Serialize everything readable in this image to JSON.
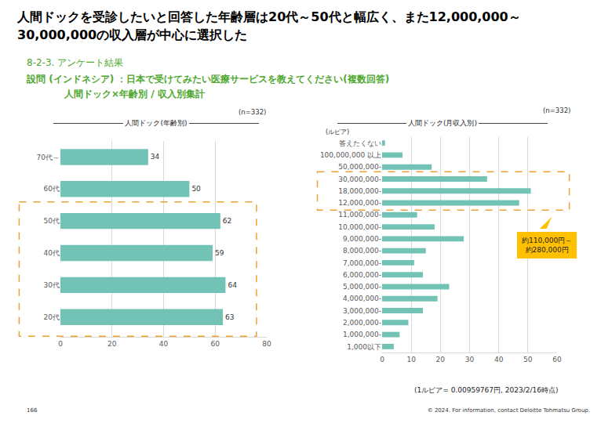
{
  "header": {
    "title": "人間ドックを受診したいと回答した年齢層は20代～50代と幅広く、また12,000,000～\n30,000,000の収入層が中心に選択した",
    "section": "8-2-3. アンケート結果",
    "question": "設問 (インドネシア) ：日本で受けてみたい医療サービスを教えてください(複数回答)",
    "subtitle": "人間ドック×年齢別 / 収入別集計"
  },
  "chart_data": [
    {
      "type": "bar",
      "orientation": "horizontal",
      "title": "人間ドック(年齢別)",
      "subtitle": "(n=332)",
      "categories": [
        "70代～",
        "60代",
        "50代",
        "40代",
        "30代",
        "20代"
      ],
      "values": [
        34,
        50,
        62,
        59,
        64,
        63
      ],
      "color": "#72c3b5",
      "xlim": [
        0,
        80
      ],
      "xticks": [
        0,
        20,
        40,
        60,
        80
      ],
      "grid": true,
      "data_labels": true,
      "annotations": [
        {
          "categories": [
            "50代",
            "40代",
            "30代",
            "20代"
          ]
        }
      ]
    },
    {
      "type": "bar",
      "orientation": "horizontal",
      "title": "人間ドック(月収入別)",
      "subtitle": "(n=332)",
      "y_label": "(ルピア)",
      "categories": [
        "答えたくない",
        "100,000,000 以上",
        "50,000,000-",
        "30,000,000-",
        "18,000,000-",
        "12,000,000-",
        "11,000,000-",
        "10,000,000-",
        "9,000,000-",
        "8,000,000-",
        "7,000,000-",
        "6,000,000-",
        "5,000,000-",
        "4,000,000-",
        "3,000,000-",
        "2,000,000-",
        "1,000,000-",
        "1,000以下"
      ],
      "values": [
        1,
        7,
        17,
        36,
        51,
        47,
        12,
        18,
        28,
        15,
        11,
        14,
        23,
        19,
        14,
        9,
        6,
        4
      ],
      "color": "#72c3b5",
      "xlim": [
        0,
        60
      ],
      "xticks": [
        0,
        10,
        20,
        30,
        40,
        50,
        60
      ],
      "grid": true,
      "data_labels": false,
      "annotations": [
        {
          "text": "約110,000円～\n約280,000円",
          "categories": [
            "30,000,000-",
            "18,000,000-",
            "12,000,000-"
          ]
        }
      ],
      "note": "(1ルピア= 0.00959767円, 2023/2/16時点)"
    }
  ],
  "footer": {
    "page": "166",
    "copyright": "© 2024. For information, contact Deloitte Tohmatsu Group."
  }
}
